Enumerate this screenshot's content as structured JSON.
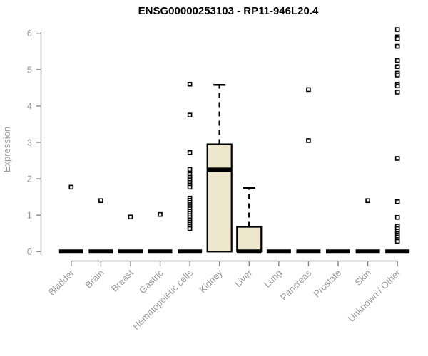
{
  "chart_data": {
    "type": "boxplot",
    "title": "ENSG00000253103 - RP11-946L20.4",
    "ylabel": "Expression",
    "xlabel": "",
    "ylim": [
      0,
      6.2
    ],
    "yticks": [
      0,
      1,
      2,
      3,
      4,
      5,
      6
    ],
    "grid": false,
    "legend": null,
    "colors": {
      "box_fill": "#ece7cd",
      "box_stroke": "#000000",
      "axis_line": "#888888",
      "axis_text": "#999999",
      "title_text": "#000000",
      "outlier_fill": "#ffffff",
      "outlier_stroke": "#000000"
    },
    "categories": [
      "Bladder",
      "Brain",
      "Breast",
      "Gastric",
      "Hematopoietic cells",
      "Kidney",
      "Liver",
      "Lung",
      "Pancreas",
      "Prostate",
      "Skin",
      "Unknown / Other"
    ],
    "boxes": [
      {
        "name": "Bladder",
        "q1": 0,
        "median": 0,
        "q3": 0,
        "whisker_low": 0,
        "whisker_high": 0,
        "outliers": [
          1.77
        ]
      },
      {
        "name": "Brain",
        "q1": 0,
        "median": 0,
        "q3": 0,
        "whisker_low": 0,
        "whisker_high": 0,
        "outliers": [
          1.4
        ]
      },
      {
        "name": "Breast",
        "q1": 0,
        "median": 0,
        "q3": 0,
        "whisker_low": 0,
        "whisker_high": 0,
        "outliers": [
          0.95
        ]
      },
      {
        "name": "Gastric",
        "q1": 0,
        "median": 0,
        "q3": 0,
        "whisker_low": 0,
        "whisker_high": 0,
        "outliers": [
          1.02
        ]
      },
      {
        "name": "Hematopoietic cells",
        "q1": 0,
        "median": 0,
        "q3": 0,
        "whisker_low": 0,
        "whisker_high": 0,
        "outliers": [
          4.6,
          3.75,
          2.72,
          2.26,
          2.12,
          2.04,
          1.97,
          1.9,
          1.83,
          1.77,
          1.47,
          1.41,
          1.35,
          1.29,
          1.23,
          1.17,
          1.11,
          1.05,
          0.99,
          0.93,
          0.87,
          0.81,
          0.75,
          0.69,
          0.63
        ]
      },
      {
        "name": "Kidney",
        "q1": 0,
        "median": 2.25,
        "q3": 2.95,
        "whisker_low": 0,
        "whisker_high": 4.58,
        "outliers": []
      },
      {
        "name": "Liver",
        "q1": 0,
        "median": 0,
        "q3": 0.68,
        "whisker_low": 0,
        "whisker_high": 1.75,
        "outliers": []
      },
      {
        "name": "Lung",
        "q1": 0,
        "median": 0,
        "q3": 0,
        "whisker_low": 0,
        "whisker_high": 0,
        "outliers": []
      },
      {
        "name": "Pancreas",
        "q1": 0,
        "median": 0,
        "q3": 0,
        "whisker_low": 0,
        "whisker_high": 0,
        "outliers": [
          4.45,
          3.05
        ]
      },
      {
        "name": "Prostate",
        "q1": 0,
        "median": 0,
        "q3": 0,
        "whisker_low": 0,
        "whisker_high": 0,
        "outliers": []
      },
      {
        "name": "Skin",
        "q1": 0,
        "median": 0,
        "q3": 0,
        "whisker_low": 0,
        "whisker_high": 0,
        "outliers": [
          1.4
        ]
      },
      {
        "name": "Unknown / Other",
        "q1": 0,
        "median": 0,
        "q3": 0,
        "whisker_low": 0,
        "whisker_high": 0,
        "outliers": [
          6.1,
          5.9,
          5.85,
          5.64,
          5.25,
          5.08,
          4.9,
          4.85,
          4.6,
          4.55,
          4.38,
          2.56,
          1.37,
          0.94,
          0.7,
          0.63,
          0.56,
          0.5,
          0.46,
          0.4,
          0.33,
          0.28
        ]
      }
    ]
  }
}
